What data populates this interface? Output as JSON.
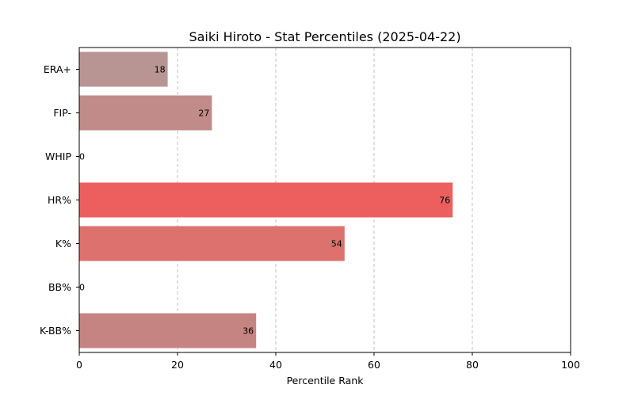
{
  "chart_data": {
    "type": "bar",
    "orientation": "horizontal",
    "title": "Saiki Hiroto - Stat Percentiles (2025-04-22)",
    "xlabel": "Percentile Rank",
    "ylabel": "",
    "xlim": [
      0,
      100
    ],
    "xticks": [
      0,
      20,
      40,
      60,
      80,
      100
    ],
    "grid": "x-dashed",
    "categories": [
      "ERA+",
      "FIP-",
      "WHIP",
      "HR%",
      "K%",
      "BB%",
      "K-BB%"
    ],
    "values": [
      18,
      27,
      0,
      76,
      54,
      0,
      36
    ],
    "colors": [
      "#b89593",
      "#c18b89",
      "#c98a88",
      "#ed5f5f",
      "#dc716e",
      "#c98a88",
      "#c58481"
    ]
  }
}
